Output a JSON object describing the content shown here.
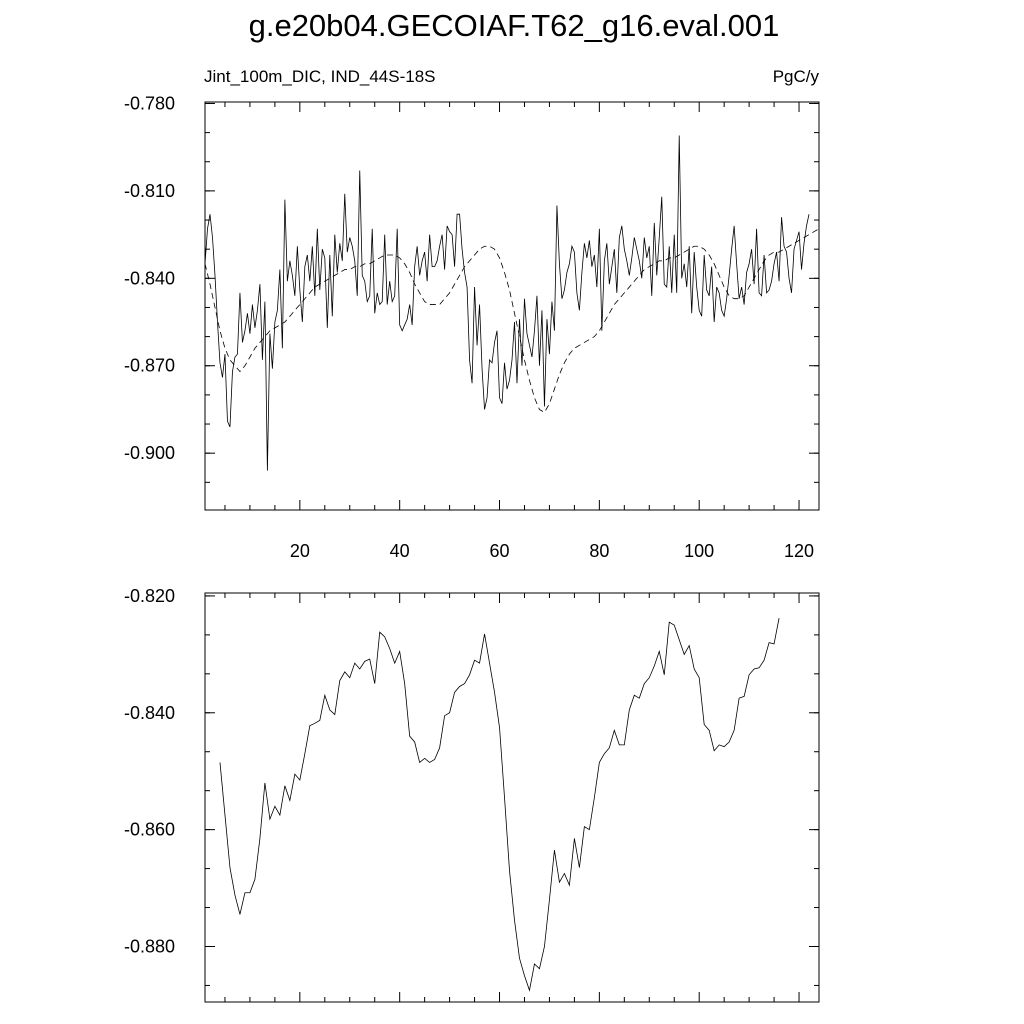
{
  "title": "g.e20b04.GECOIAF.T62_g16.eval.001",
  "subtitle_left": "Jint_100m_DIC, IND_44S-18S",
  "subtitle_right": "PgC/y",
  "colors": {
    "line": "#000000",
    "background": "#ffffff"
  },
  "chart_data": [
    {
      "type": "line",
      "xlim": [
        1,
        124
      ],
      "ylim": [
        -0.9195,
        -0.7795
      ],
      "x_ticks": [
        20,
        40,
        60,
        80,
        100,
        120
      ],
      "x_tick_labels": [
        "20",
        "40",
        "60",
        "80",
        "100",
        "120"
      ],
      "y_ticks": [
        -0.78,
        -0.81,
        -0.84,
        -0.87,
        -0.9
      ],
      "y_tick_labels": [
        "-0.780",
        "-0.810",
        "-0.840",
        "-0.870",
        "-0.900"
      ],
      "grid": false,
      "series": [
        {
          "style": "solid",
          "x_start": 1,
          "values": [
            -0.835,
            -0.823,
            -0.818,
            -0.826,
            -0.839,
            -0.855,
            -0.869,
            -0.874,
            -0.866,
            -0.889,
            -0.891,
            -0.872,
            -0.867,
            -0.866,
            -0.845,
            -0.862,
            -0.858,
            -0.852,
            -0.859,
            -0.849,
            -0.857,
            -0.851,
            -0.842,
            -0.868,
            -0.848,
            -0.906,
            -0.859,
            -0.871,
            -0.855,
            -0.851,
            -0.837,
            -0.864,
            -0.813,
            -0.841,
            -0.834,
            -0.839,
            -0.846,
            -0.829,
            -0.844,
            -0.855,
            -0.836,
            -0.832,
            -0.841,
            -0.829,
            -0.846,
            -0.823,
            -0.844,
            -0.83,
            -0.833,
            -0.857,
            -0.832,
            -0.853,
            -0.825,
            -0.838,
            -0.828,
            -0.834,
            -0.811,
            -0.831,
            -0.826,
            -0.829,
            -0.834,
            -0.846,
            -0.803,
            -0.839,
            -0.841,
            -0.848,
            -0.846,
            -0.823,
            -0.852,
            -0.845,
            -0.849,
            -0.848,
            -0.825,
            -0.849,
            -0.841,
            -0.848,
            -0.846,
            -0.823,
            -0.856,
            -0.858,
            -0.856,
            -0.854,
            -0.849,
            -0.856,
            -0.836,
            -0.829,
            -0.839,
            -0.834,
            -0.831,
            -0.841,
            -0.825,
            -0.836,
            -0.836,
            -0.834,
            -0.829,
            -0.825,
            -0.837,
            -0.822,
            -0.824,
            -0.825,
            -0.836,
            -0.818,
            -0.818,
            -0.83,
            -0.838,
            -0.843,
            -0.868,
            -0.876,
            -0.843,
            -0.863,
            -0.849,
            -0.871,
            -0.885,
            -0.881,
            -0.868,
            -0.869,
            -0.862,
            -0.858,
            -0.881,
            -0.883,
            -0.869,
            -0.878,
            -0.875,
            -0.868,
            -0.855,
            -0.876,
            -0.854,
            -0.87,
            -0.847,
            -0.859,
            -0.863,
            -0.867,
            -0.858,
            -0.846,
            -0.87,
            -0.851,
            -0.884,
            -0.854,
            -0.866,
            -0.848,
            -0.858,
            -0.815,
            -0.835,
            -0.847,
            -0.844,
            -0.838,
            -0.835,
            -0.829,
            -0.831,
            -0.845,
            -0.851,
            -0.838,
            -0.828,
            -0.833,
            -0.827,
            -0.836,
            -0.832,
            -0.843,
            -0.823,
            -0.858,
            -0.834,
            -0.828,
            -0.842,
            -0.836,
            -0.83,
            -0.845,
            -0.826,
            -0.822,
            -0.83,
            -0.834,
            -0.839,
            -0.833,
            -0.826,
            -0.83,
            -0.834,
            -0.84,
            -0.826,
            -0.833,
            -0.829,
            -0.846,
            -0.821,
            -0.839,
            -0.826,
            -0.812,
            -0.842,
            -0.843,
            -0.829,
            -0.845,
            -0.825,
            -0.845,
            -0.791,
            -0.84,
            -0.835,
            -0.843,
            -0.829,
            -0.852,
            -0.831,
            -0.843,
            -0.851,
            -0.853,
            -0.832,
            -0.844,
            -0.846,
            -0.836,
            -0.855,
            -0.843,
            -0.845,
            -0.851,
            -0.853,
            -0.847,
            -0.839,
            -0.83,
            -0.822,
            -0.835,
            -0.847,
            -0.843,
            -0.849,
            -0.838,
            -0.835,
            -0.83,
            -0.842,
            -0.823,
            -0.845,
            -0.846,
            -0.832,
            -0.845,
            -0.844,
            -0.841,
            -0.835,
            -0.831,
            -0.841,
            -0.819,
            -0.829,
            -0.831,
            -0.84,
            -0.845,
            -0.83,
            -0.827,
            -0.824,
            -0.837,
            -0.828,
            -0.822,
            -0.818
          ],
          "x_step": 0.5
        },
        {
          "style": "dashed",
          "x_start": 1,
          "values": [
            -0.835,
            -0.842,
            -0.85,
            -0.858,
            -0.864,
            -0.868,
            -0.87,
            -0.872,
            -0.87,
            -0.867,
            -0.864,
            -0.862,
            -0.86,
            -0.858,
            -0.857,
            -0.856,
            -0.855,
            -0.853,
            -0.851,
            -0.849,
            -0.847,
            -0.845,
            -0.843,
            -0.842,
            -0.841,
            -0.84,
            -0.839,
            -0.838,
            -0.837,
            -0.837,
            -0.836,
            -0.836,
            -0.835,
            -0.835,
            -0.834,
            -0.833,
            -0.832,
            -0.832,
            -0.832,
            -0.833,
            -0.835,
            -0.838,
            -0.842,
            -0.845,
            -0.848,
            -0.849,
            -0.849,
            -0.849,
            -0.847,
            -0.845,
            -0.842,
            -0.839,
            -0.836,
            -0.834,
            -0.832,
            -0.83,
            -0.829,
            -0.829,
            -0.83,
            -0.833,
            -0.838,
            -0.844,
            -0.852,
            -0.86,
            -0.868,
            -0.875,
            -0.881,
            -0.885,
            -0.886,
            -0.883,
            -0.878,
            -0.873,
            -0.869,
            -0.866,
            -0.864,
            -0.863,
            -0.862,
            -0.861,
            -0.86,
            -0.858,
            -0.855,
            -0.852,
            -0.849,
            -0.847,
            -0.845,
            -0.843,
            -0.841,
            -0.839,
            -0.837,
            -0.836,
            -0.835,
            -0.834,
            -0.834,
            -0.833,
            -0.833,
            -0.832,
            -0.831,
            -0.83,
            -0.829,
            -0.829,
            -0.83,
            -0.832,
            -0.835,
            -0.839,
            -0.843,
            -0.846,
            -0.847,
            -0.847,
            -0.846,
            -0.843,
            -0.84,
            -0.837,
            -0.834,
            -0.832,
            -0.831,
            -0.831,
            -0.83,
            -0.829,
            -0.828,
            -0.827,
            -0.826,
            -0.825,
            -0.824,
            -0.823
          ]
        }
      ]
    },
    {
      "type": "line",
      "xlim": [
        1,
        124
      ],
      "ylim": [
        -0.8895,
        -0.8195
      ],
      "x_ticks": [
        20,
        40,
        60,
        80,
        100,
        120
      ],
      "y_ticks": [
        -0.82,
        -0.84,
        -0.86,
        -0.88
      ],
      "y_tick_labels": [
        "-0.820",
        "-0.840",
        "-0.860",
        "-0.880"
      ],
      "grid": false,
      "series": [
        {
          "style": "solid",
          "x_start": 4,
          "values": [
            -0.8485,
            -0.8575,
            -0.8665,
            -0.8712,
            -0.8745,
            -0.8708,
            -0.8708,
            -0.8685,
            -0.8615,
            -0.852,
            -0.8582,
            -0.856,
            -0.8575,
            -0.8525,
            -0.855,
            -0.8505,
            -0.8515,
            -0.847,
            -0.8422,
            -0.8418,
            -0.8413,
            -0.837,
            -0.8395,
            -0.8403,
            -0.8345,
            -0.833,
            -0.834,
            -0.8315,
            -0.8325,
            -0.8312,
            -0.8308,
            -0.835,
            -0.8262,
            -0.827,
            -0.829,
            -0.8315,
            -0.8295,
            -0.835,
            -0.844,
            -0.845,
            -0.8485,
            -0.8478,
            -0.8485,
            -0.848,
            -0.846,
            -0.8405,
            -0.84,
            -0.8365,
            -0.8355,
            -0.835,
            -0.8335,
            -0.831,
            -0.8315,
            -0.8265,
            -0.8315,
            -0.8365,
            -0.8425,
            -0.8545,
            -0.867,
            -0.8755,
            -0.882,
            -0.885,
            -0.8875,
            -0.883,
            -0.8838,
            -0.88,
            -0.872,
            -0.8635,
            -0.869,
            -0.8675,
            -0.8695,
            -0.8615,
            -0.8665,
            -0.8595,
            -0.86,
            -0.8545,
            -0.8485,
            -0.847,
            -0.846,
            -0.843,
            -0.8455,
            -0.8455,
            -0.8395,
            -0.837,
            -0.8375,
            -0.835,
            -0.834,
            -0.832,
            -0.8295,
            -0.8335,
            -0.8245,
            -0.825,
            -0.8275,
            -0.83,
            -0.8285,
            -0.8325,
            -0.834,
            -0.842,
            -0.843,
            -0.8465,
            -0.8455,
            -0.8458,
            -0.845,
            -0.843,
            -0.8375,
            -0.8372,
            -0.8335,
            -0.8325,
            -0.8323,
            -0.831,
            -0.828,
            -0.8282,
            -0.8238
          ],
          "x_step": 1
        }
      ]
    }
  ]
}
